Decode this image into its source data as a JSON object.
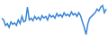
{
  "chart_data": {
    "type": "line",
    "values": [
      55,
      50,
      35,
      40,
      30,
      45,
      38,
      42,
      35,
      50,
      40,
      60,
      45,
      48,
      85,
      50,
      55,
      48,
      60,
      52,
      58,
      50,
      62,
      55,
      60,
      50,
      65,
      58,
      62,
      55,
      68,
      60,
      65,
      58,
      70,
      62,
      66,
      60,
      72,
      64,
      68,
      60,
      70,
      62,
      45,
      30,
      10,
      40,
      55,
      60,
      65,
      70,
      80,
      75,
      85,
      90,
      70,
      80
    ],
    "color": "#3a86d8",
    "ylim": [
      0,
      100
    ],
    "tick_labels": false,
    "grid": false
  }
}
